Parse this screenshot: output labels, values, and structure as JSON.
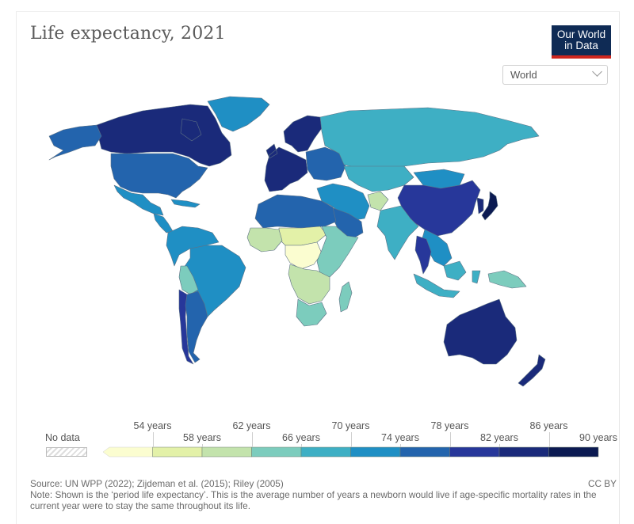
{
  "header": {
    "title": "Life expectancy, 2021",
    "logo_line1": "Our World",
    "logo_line2": "in Data",
    "region_select": {
      "value": "World"
    }
  },
  "colors": {
    "logo_bg": "#0f2b55",
    "logo_accent": "#ce261e"
  },
  "chart_data": {
    "type": "choropleth",
    "title": "Life expectancy, 2021",
    "unit": "years",
    "region": "World",
    "legend": {
      "no_data_label": "No data",
      "bins": [
        {
          "max": 54,
          "color": "#fbfdd0"
        },
        {
          "min": 54,
          "max": 58,
          "color": "#e3f1a8"
        },
        {
          "min": 58,
          "max": 62,
          "color": "#c3e3ac"
        },
        {
          "min": 62,
          "max": 66,
          "color": "#7cccbd"
        },
        {
          "min": 66,
          "max": 70,
          "color": "#3eafc4"
        },
        {
          "min": 70,
          "max": 74,
          "color": "#1f8fc4"
        },
        {
          "min": 74,
          "max": 78,
          "color": "#2364ad"
        },
        {
          "min": 78,
          "max": 82,
          "color": "#27379a"
        },
        {
          "min": 82,
          "max": 86,
          "color": "#1a2a7a"
        },
        {
          "min": 86,
          "max": 90,
          "color": "#0b1a52"
        }
      ],
      "tick_labels": [
        "54 years",
        "58 years",
        "62 years",
        "66 years",
        "70 years",
        "74 years",
        "78 years",
        "82 years",
        "86 years",
        "90 years"
      ]
    },
    "regions": [
      {
        "name": "Canada",
        "bin": 8
      },
      {
        "name": "United States",
        "bin": 6
      },
      {
        "name": "Alaska",
        "bin": 6
      },
      {
        "name": "Greenland",
        "bin": 5
      },
      {
        "name": "Mexico",
        "bin": 5
      },
      {
        "name": "Central America",
        "bin": 5
      },
      {
        "name": "Caribbean",
        "bin": 5
      },
      {
        "name": "Brazil",
        "bin": 5
      },
      {
        "name": "Northern South America",
        "bin": 5
      },
      {
        "name": "Bolivia",
        "bin": 3
      },
      {
        "name": "Chile",
        "bin": 7
      },
      {
        "name": "Argentina",
        "bin": 6
      },
      {
        "name": "Western Europe",
        "bin": 8
      },
      {
        "name": "Scandinavia",
        "bin": 8
      },
      {
        "name": "Eastern Europe",
        "bin": 6
      },
      {
        "name": "Russia",
        "bin": 4
      },
      {
        "name": "Kazakhstan / Central Asia",
        "bin": 4
      },
      {
        "name": "Mongolia",
        "bin": 5
      },
      {
        "name": "China",
        "bin": 7
      },
      {
        "name": "Japan",
        "bin": 9
      },
      {
        "name": "Korea",
        "bin": 8
      },
      {
        "name": "India",
        "bin": 4
      },
      {
        "name": "Afghanistan",
        "bin": 2
      },
      {
        "name": "Middle East",
        "bin": 5
      },
      {
        "name": "Saudi Arabia",
        "bin": 6
      },
      {
        "name": "North Africa",
        "bin": 6
      },
      {
        "name": "Sahel",
        "bin": 1
      },
      {
        "name": "Central Africa",
        "bin": 0
      },
      {
        "name": "West Africa",
        "bin": 2
      },
      {
        "name": "East Africa",
        "bin": 3
      },
      {
        "name": "Southern Africa",
        "bin": 2
      },
      {
        "name": "South Africa",
        "bin": 3
      },
      {
        "name": "Madagascar",
        "bin": 3
      },
      {
        "name": "Southeast Asia",
        "bin": 5
      },
      {
        "name": "Thailand",
        "bin": 7
      },
      {
        "name": "Indonesia",
        "bin": 4
      },
      {
        "name": "Papua New Guinea",
        "bin": 3
      },
      {
        "name": "Australia",
        "bin": 8
      },
      {
        "name": "New Zealand",
        "bin": 8
      }
    ]
  },
  "footer": {
    "source": "Source: UN WPP (2022); Zijdeman et al. (2015); Riley (2005)",
    "note": "Note: Shown is the ‘period life expectancy’. This is the average number of years a newborn would live if age-specific mortality rates in the current year were to stay the same throughout its life.",
    "license": "CC BY"
  }
}
